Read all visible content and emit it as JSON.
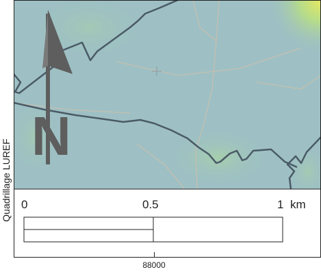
{
  "side_label": "Quadrillage LUREF",
  "grid_tick_label": "88000",
  "scale_bar": {
    "labels": [
      "0",
      "0.5",
      "1"
    ],
    "unit": "km"
  },
  "north_arrow": {
    "letter": "N"
  },
  "colors": {
    "map_base": "#9cbfc5",
    "map_tint_green": "#a5cfa8",
    "map_tint_yellow": "#d8e070",
    "boundary_line": "#4a5a66",
    "road_line": "#c9bfae",
    "north_arrow": "#5e5e5e"
  }
}
